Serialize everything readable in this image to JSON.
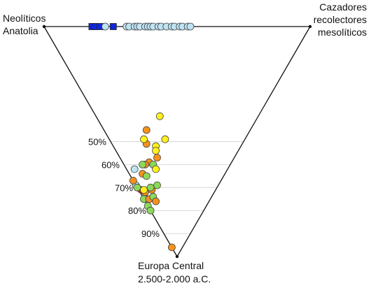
{
  "chart_data": {
    "type": "scatter",
    "subtype": "ternary",
    "vertices": {
      "top_left": [
        "Neolíticos",
        "Anatolia"
      ],
      "top_right": [
        "Cazadores",
        "recolectores",
        "mesolíticos"
      ],
      "bottom": [
        "Europa Central",
        "2.500-2.000 a.C."
      ]
    },
    "levels": [
      {
        "value": 0.5,
        "label": "50%"
      },
      {
        "value": 0.6,
        "label": "60%"
      },
      {
        "value": 0.7,
        "label": "70%"
      },
      {
        "value": 0.8,
        "label": "80%"
      },
      {
        "value": 0.9,
        "label": "90%"
      }
    ],
    "colors": {
      "yellow": "#FFF21A",
      "orange": "#F5921E",
      "green": "#8CD95A",
      "lightblue": "#BFE3F2",
      "red": "#E8141C",
      "blue": "#1028D8"
    },
    "points": [
      {
        "a": 0.82,
        "b": 0.18,
        "c": 0.0,
        "color": "blue",
        "marker": "square"
      },
      {
        "a": 0.81,
        "b": 0.19,
        "c": 0.0,
        "color": "blue",
        "marker": "square"
      },
      {
        "a": 0.79,
        "b": 0.21,
        "c": 0.0,
        "color": "blue",
        "marker": "square"
      },
      {
        "a": 0.77,
        "b": 0.23,
        "c": 0.0,
        "color": "lightblue",
        "marker": "circle"
      },
      {
        "a": 0.74,
        "b": 0.26,
        "c": 0.0,
        "color": "blue",
        "marker": "square"
      },
      {
        "a": 0.69,
        "b": 0.31,
        "c": 0.0,
        "color": "lightblue",
        "marker": "circle"
      },
      {
        "a": 0.68,
        "b": 0.32,
        "c": 0.0,
        "color": "lightblue",
        "marker": "circle"
      },
      {
        "a": 0.66,
        "b": 0.34,
        "c": 0.0,
        "color": "lightblue",
        "marker": "circle"
      },
      {
        "a": 0.65,
        "b": 0.35,
        "c": 0.0,
        "color": "lightblue",
        "marker": "circle"
      },
      {
        "a": 0.64,
        "b": 0.36,
        "c": 0.0,
        "color": "lightblue",
        "marker": "circle"
      },
      {
        "a": 0.62,
        "b": 0.38,
        "c": 0.0,
        "color": "lightblue",
        "marker": "circle"
      },
      {
        "a": 0.61,
        "b": 0.39,
        "c": 0.0,
        "color": "lightblue",
        "marker": "circle"
      },
      {
        "a": 0.6,
        "b": 0.4,
        "c": 0.0,
        "color": "lightblue",
        "marker": "circle"
      },
      {
        "a": 0.59,
        "b": 0.41,
        "c": 0.0,
        "color": "lightblue",
        "marker": "circle"
      },
      {
        "a": 0.57,
        "b": 0.43,
        "c": 0.0,
        "color": "lightblue",
        "marker": "circle"
      },
      {
        "a": 0.56,
        "b": 0.44,
        "c": 0.0,
        "color": "lightblue",
        "marker": "circle"
      },
      {
        "a": 0.54,
        "b": 0.46,
        "c": 0.0,
        "color": "lightblue",
        "marker": "circle"
      },
      {
        "a": 0.52,
        "b": 0.48,
        "c": 0.0,
        "color": "lightblue",
        "marker": "circle"
      },
      {
        "a": 0.51,
        "b": 0.49,
        "c": 0.0,
        "color": "lightblue",
        "marker": "circle"
      },
      {
        "a": 0.49,
        "b": 0.51,
        "c": 0.0,
        "color": "lightblue",
        "marker": "circle"
      },
      {
        "a": 0.48,
        "b": 0.52,
        "c": 0.0,
        "color": "lightblue",
        "marker": "circle"
      },
      {
        "a": 0.46,
        "b": 0.54,
        "c": 0.0,
        "color": "lightblue",
        "marker": "circle"
      },
      {
        "a": 0.45,
        "b": 0.55,
        "c": 0.0,
        "color": "lightblue",
        "marker": "circle"
      },
      {
        "a": 0.37,
        "b": 0.24,
        "c": 0.39,
        "color": "yellow",
        "marker": "circle"
      },
      {
        "a": 0.39,
        "b": 0.16,
        "c": 0.45,
        "color": "orange",
        "marker": "circle"
      },
      {
        "a": 0.36,
        "b": 0.13,
        "c": 0.51,
        "color": "orange",
        "marker": "circle"
      },
      {
        "a": 0.3,
        "b": 0.21,
        "c": 0.49,
        "color": "yellow",
        "marker": "circle"
      },
      {
        "a": 0.32,
        "b": 0.16,
        "c": 0.52,
        "color": "yellow",
        "marker": "circle"
      },
      {
        "a": 0.31,
        "b": 0.1,
        "c": 0.59,
        "color": "orange",
        "marker": "circle"
      },
      {
        "a": 0.32,
        "b": 0.08,
        "c": 0.6,
        "color": "orange",
        "marker": "circle"
      },
      {
        "a": 0.33,
        "b": 0.07,
        "c": 0.6,
        "color": "green",
        "marker": "circle"
      },
      {
        "a": 0.31,
        "b": 0.05,
        "c": 0.64,
        "color": "orange",
        "marker": "circle"
      },
      {
        "a": 0.35,
        "b": 0.03,
        "c": 0.62,
        "color": "lightblue",
        "marker": "circle"
      },
      {
        "a": 0.24,
        "b": 0.05,
        "c": 0.71,
        "color": "orange",
        "marker": "circle"
      },
      {
        "a": 0.29,
        "b": 0.06,
        "c": 0.65,
        "color": "green",
        "marker": "circle"
      },
      {
        "a": 0.31,
        "b": 0.0,
        "c": 0.69,
        "color": "yellow",
        "marker": "circle"
      },
      {
        "a": 0.28,
        "b": 0.01,
        "c": 0.71,
        "color": "red",
        "marker": "circle"
      },
      {
        "a": 0.26,
        "b": 0.02,
        "c": 0.72,
        "color": "orange",
        "marker": "circle"
      },
      {
        "a": 0.25,
        "b": 0.05,
        "c": 0.7,
        "color": "green",
        "marker": "circle"
      },
      {
        "a": 0.24,
        "b": 0.01,
        "c": 0.75,
        "color": "orange",
        "marker": "circle"
      },
      {
        "a": 0.25,
        "b": 0.0,
        "c": 0.75,
        "color": "green",
        "marker": "circle"
      },
      {
        "a": 0.31,
        "b": 0.0,
        "c": 0.69,
        "color": "lightblue",
        "marker": "circle"
      },
      {
        "a": 0.3,
        "b": 0.0,
        "c": 0.7,
        "color": "green",
        "marker": "circle"
      },
      {
        "a": 0.33,
        "b": 0.0,
        "c": 0.67,
        "color": "orange",
        "marker": "circle"
      },
      {
        "a": 0.23,
        "b": 0.02,
        "c": 0.75,
        "color": "orange",
        "marker": "circle"
      },
      {
        "a": 0.22,
        "b": 0.04,
        "c": 0.74,
        "color": "green",
        "marker": "circle"
      },
      {
        "a": 0.23,
        "b": 0.08,
        "c": 0.69,
        "color": "green",
        "marker": "circle"
      },
      {
        "a": 0.22,
        "b": 0.0,
        "c": 0.78,
        "color": "green",
        "marker": "circle"
      },
      {
        "a": 0.2,
        "b": 0.0,
        "c": 0.8,
        "color": "green",
        "marker": "circle"
      },
      {
        "a": 0.2,
        "b": 0.04,
        "c": 0.76,
        "color": "orange",
        "marker": "circle"
      },
      {
        "a": 0.04,
        "b": 0.0,
        "c": 0.96,
        "color": "orange",
        "marker": "circle"
      },
      {
        "a": 0.31,
        "b": 0.15,
        "c": 0.54,
        "color": "yellow",
        "marker": "circle"
      },
      {
        "a": 0.29,
        "b": 0.11,
        "c": 0.6,
        "color": "green",
        "marker": "circle"
      },
      {
        "a": 0.38,
        "b": 0.13,
        "c": 0.49,
        "color": "yellow",
        "marker": "circle"
      },
      {
        "a": 0.29,
        "b": 0.14,
        "c": 0.57,
        "color": "orange",
        "marker": "circle"
      },
      {
        "a": 0.27,
        "b": 0.11,
        "c": 0.62,
        "color": "yellow",
        "marker": "circle"
      },
      {
        "a": 0.27,
        "b": 0.02,
        "c": 0.71,
        "color": "yellow",
        "marker": "circle"
      }
    ]
  }
}
